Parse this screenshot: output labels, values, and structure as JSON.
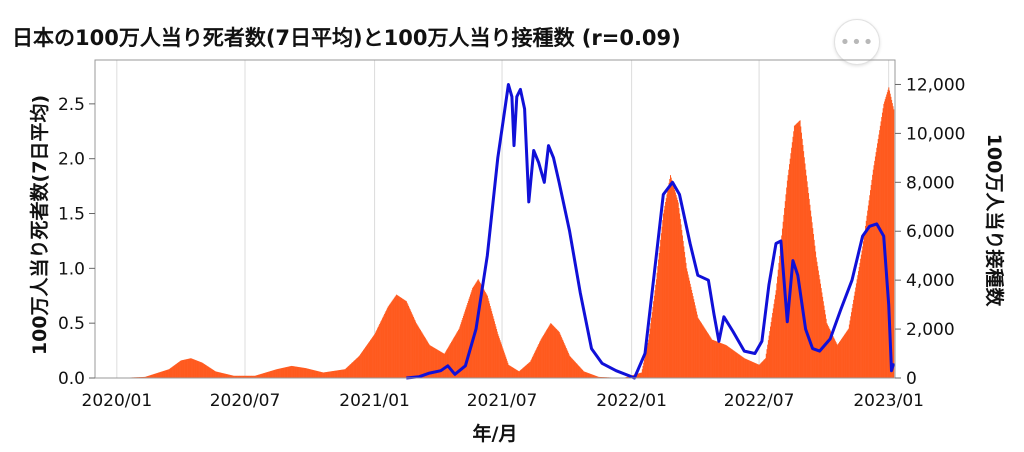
{
  "chart_data": {
    "type": "bar+line",
    "title": "日本の100万人当り死者数(7日平均)と100万人当り接種数 (r=0.09)",
    "xlabel": "年/月",
    "ylabel_left": "100万人当り死者数(7日平均)",
    "ylabel_right": "100万人当り接種数",
    "x_ticks": [
      "2020/01",
      "2020/07",
      "2021/01",
      "2021/07",
      "2022/01",
      "2022/07",
      "2023/01"
    ],
    "x_range": [
      "2019-12-01",
      "2023-01-10"
    ],
    "ylim_left": [
      0,
      2.9
    ],
    "y_ticks_left": [
      "0.0",
      "0.5",
      "1.0",
      "1.5",
      "2.0",
      "2.5"
    ],
    "ylim_right": [
      0,
      13000
    ],
    "y_ticks_right": [
      "0",
      "2,000",
      "4,000",
      "6,000",
      "8,000",
      "10,000",
      "12,000"
    ],
    "grid": "vertical",
    "series": [
      {
        "type": "bar",
        "axis": "left",
        "color": "#ff5a1f",
        "points": [
          [
            "2020-01-01",
            0.0
          ],
          [
            "2020-02-10",
            0.01
          ],
          [
            "2020-03-15",
            0.08
          ],
          [
            "2020-04-01",
            0.16
          ],
          [
            "2020-04-15",
            0.18
          ],
          [
            "2020-05-01",
            0.14
          ],
          [
            "2020-05-20",
            0.06
          ],
          [
            "2020-06-15",
            0.02
          ],
          [
            "2020-07-15",
            0.02
          ],
          [
            "2020-08-15",
            0.08
          ],
          [
            "2020-09-05",
            0.11
          ],
          [
            "2020-09-25",
            0.09
          ],
          [
            "2020-10-20",
            0.05
          ],
          [
            "2020-11-20",
            0.08
          ],
          [
            "2020-12-10",
            0.2
          ],
          [
            "2021-01-01",
            0.4
          ],
          [
            "2021-01-20",
            0.65
          ],
          [
            "2021-02-01",
            0.76
          ],
          [
            "2021-02-15",
            0.7
          ],
          [
            "2021-03-01",
            0.5
          ],
          [
            "2021-03-20",
            0.3
          ],
          [
            "2021-04-10",
            0.22
          ],
          [
            "2021-05-01",
            0.45
          ],
          [
            "2021-05-20",
            0.82
          ],
          [
            "2021-05-28",
            0.9
          ],
          [
            "2021-06-10",
            0.75
          ],
          [
            "2021-06-25",
            0.4
          ],
          [
            "2021-07-10",
            0.12
          ],
          [
            "2021-07-25",
            0.06
          ],
          [
            "2021-08-10",
            0.15
          ],
          [
            "2021-08-25",
            0.35
          ],
          [
            "2021-09-08",
            0.5
          ],
          [
            "2021-09-20",
            0.42
          ],
          [
            "2021-10-05",
            0.2
          ],
          [
            "2021-10-25",
            0.06
          ],
          [
            "2021-11-15",
            0.01
          ],
          [
            "2021-12-20",
            0.0
          ],
          [
            "2022-01-15",
            0.05
          ],
          [
            "2022-01-25",
            0.35
          ],
          [
            "2022-02-05",
            0.9
          ],
          [
            "2022-02-15",
            1.5
          ],
          [
            "2022-02-25",
            1.85
          ],
          [
            "2022-03-08",
            1.6
          ],
          [
            "2022-03-20",
            1.0
          ],
          [
            "2022-04-05",
            0.55
          ],
          [
            "2022-04-25",
            0.35
          ],
          [
            "2022-05-15",
            0.3
          ],
          [
            "2022-06-10",
            0.18
          ],
          [
            "2022-07-01",
            0.12
          ],
          [
            "2022-07-10",
            0.18
          ],
          [
            "2022-07-25",
            0.8
          ],
          [
            "2022-08-10",
            1.8
          ],
          [
            "2022-08-20",
            2.3
          ],
          [
            "2022-08-28",
            2.35
          ],
          [
            "2022-09-05",
            1.9
          ],
          [
            "2022-09-20",
            1.1
          ],
          [
            "2022-10-05",
            0.5
          ],
          [
            "2022-10-20",
            0.3
          ],
          [
            "2022-11-05",
            0.45
          ],
          [
            "2022-11-25",
            1.2
          ],
          [
            "2022-12-10",
            1.9
          ],
          [
            "2022-12-25",
            2.5
          ],
          [
            "2023-01-01",
            2.65
          ],
          [
            "2023-01-08",
            2.45
          ]
        ]
      },
      {
        "type": "line",
        "axis": "right",
        "color": "#1010d8",
        "points": [
          [
            "2021-02-15",
            0
          ],
          [
            "2021-03-05",
            50
          ],
          [
            "2021-03-20",
            200
          ],
          [
            "2021-04-05",
            300
          ],
          [
            "2021-04-15",
            500
          ],
          [
            "2021-04-25",
            150
          ],
          [
            "2021-05-10",
            500
          ],
          [
            "2021-05-25",
            2000
          ],
          [
            "2021-06-10",
            5000
          ],
          [
            "2021-06-25",
            9000
          ],
          [
            "2021-07-05",
            11000
          ],
          [
            "2021-07-10",
            12000
          ],
          [
            "2021-07-15",
            11500
          ],
          [
            "2021-07-18",
            9500
          ],
          [
            "2021-07-22",
            11500
          ],
          [
            "2021-07-27",
            11800
          ],
          [
            "2021-08-02",
            11000
          ],
          [
            "2021-08-08",
            7200
          ],
          [
            "2021-08-15",
            9300
          ],
          [
            "2021-08-22",
            8800
          ],
          [
            "2021-08-30",
            8000
          ],
          [
            "2021-09-05",
            9500
          ],
          [
            "2021-09-12",
            9000
          ],
          [
            "2021-09-20",
            8000
          ],
          [
            "2021-10-05",
            6000
          ],
          [
            "2021-10-20",
            3500
          ],
          [
            "2021-11-05",
            1200
          ],
          [
            "2021-11-20",
            600
          ],
          [
            "2021-12-10",
            300
          ],
          [
            "2021-12-28",
            100
          ],
          [
            "2022-01-05",
            0
          ],
          [
            "2022-01-20",
            1000
          ],
          [
            "2022-02-01",
            4000
          ],
          [
            "2022-02-15",
            7500
          ],
          [
            "2022-02-28",
            8000
          ],
          [
            "2022-03-10",
            7500
          ],
          [
            "2022-03-25",
            5500
          ],
          [
            "2022-04-05",
            4200
          ],
          [
            "2022-04-20",
            4000
          ],
          [
            "2022-04-28",
            2600
          ],
          [
            "2022-05-05",
            1500
          ],
          [
            "2022-05-12",
            2500
          ],
          [
            "2022-05-25",
            1900
          ],
          [
            "2022-06-10",
            1100
          ],
          [
            "2022-06-25",
            1000
          ],
          [
            "2022-07-05",
            1500
          ],
          [
            "2022-07-15",
            3800
          ],
          [
            "2022-07-25",
            5500
          ],
          [
            "2022-08-01",
            5600
          ],
          [
            "2022-08-10",
            2300
          ],
          [
            "2022-08-18",
            4800
          ],
          [
            "2022-08-25",
            4200
          ],
          [
            "2022-09-05",
            2000
          ],
          [
            "2022-09-15",
            1200
          ],
          [
            "2022-09-25",
            1100
          ],
          [
            "2022-10-10",
            1600
          ],
          [
            "2022-10-25",
            2800
          ],
          [
            "2022-11-10",
            4000
          ],
          [
            "2022-11-25",
            5800
          ],
          [
            "2022-12-05",
            6200
          ],
          [
            "2022-12-15",
            6300
          ],
          [
            "2022-12-25",
            5800
          ],
          [
            "2023-01-01",
            3000
          ],
          [
            "2023-01-05",
            300
          ],
          [
            "2023-01-08",
            600
          ]
        ]
      }
    ]
  },
  "menu_icon": "more-horizontal-icon"
}
